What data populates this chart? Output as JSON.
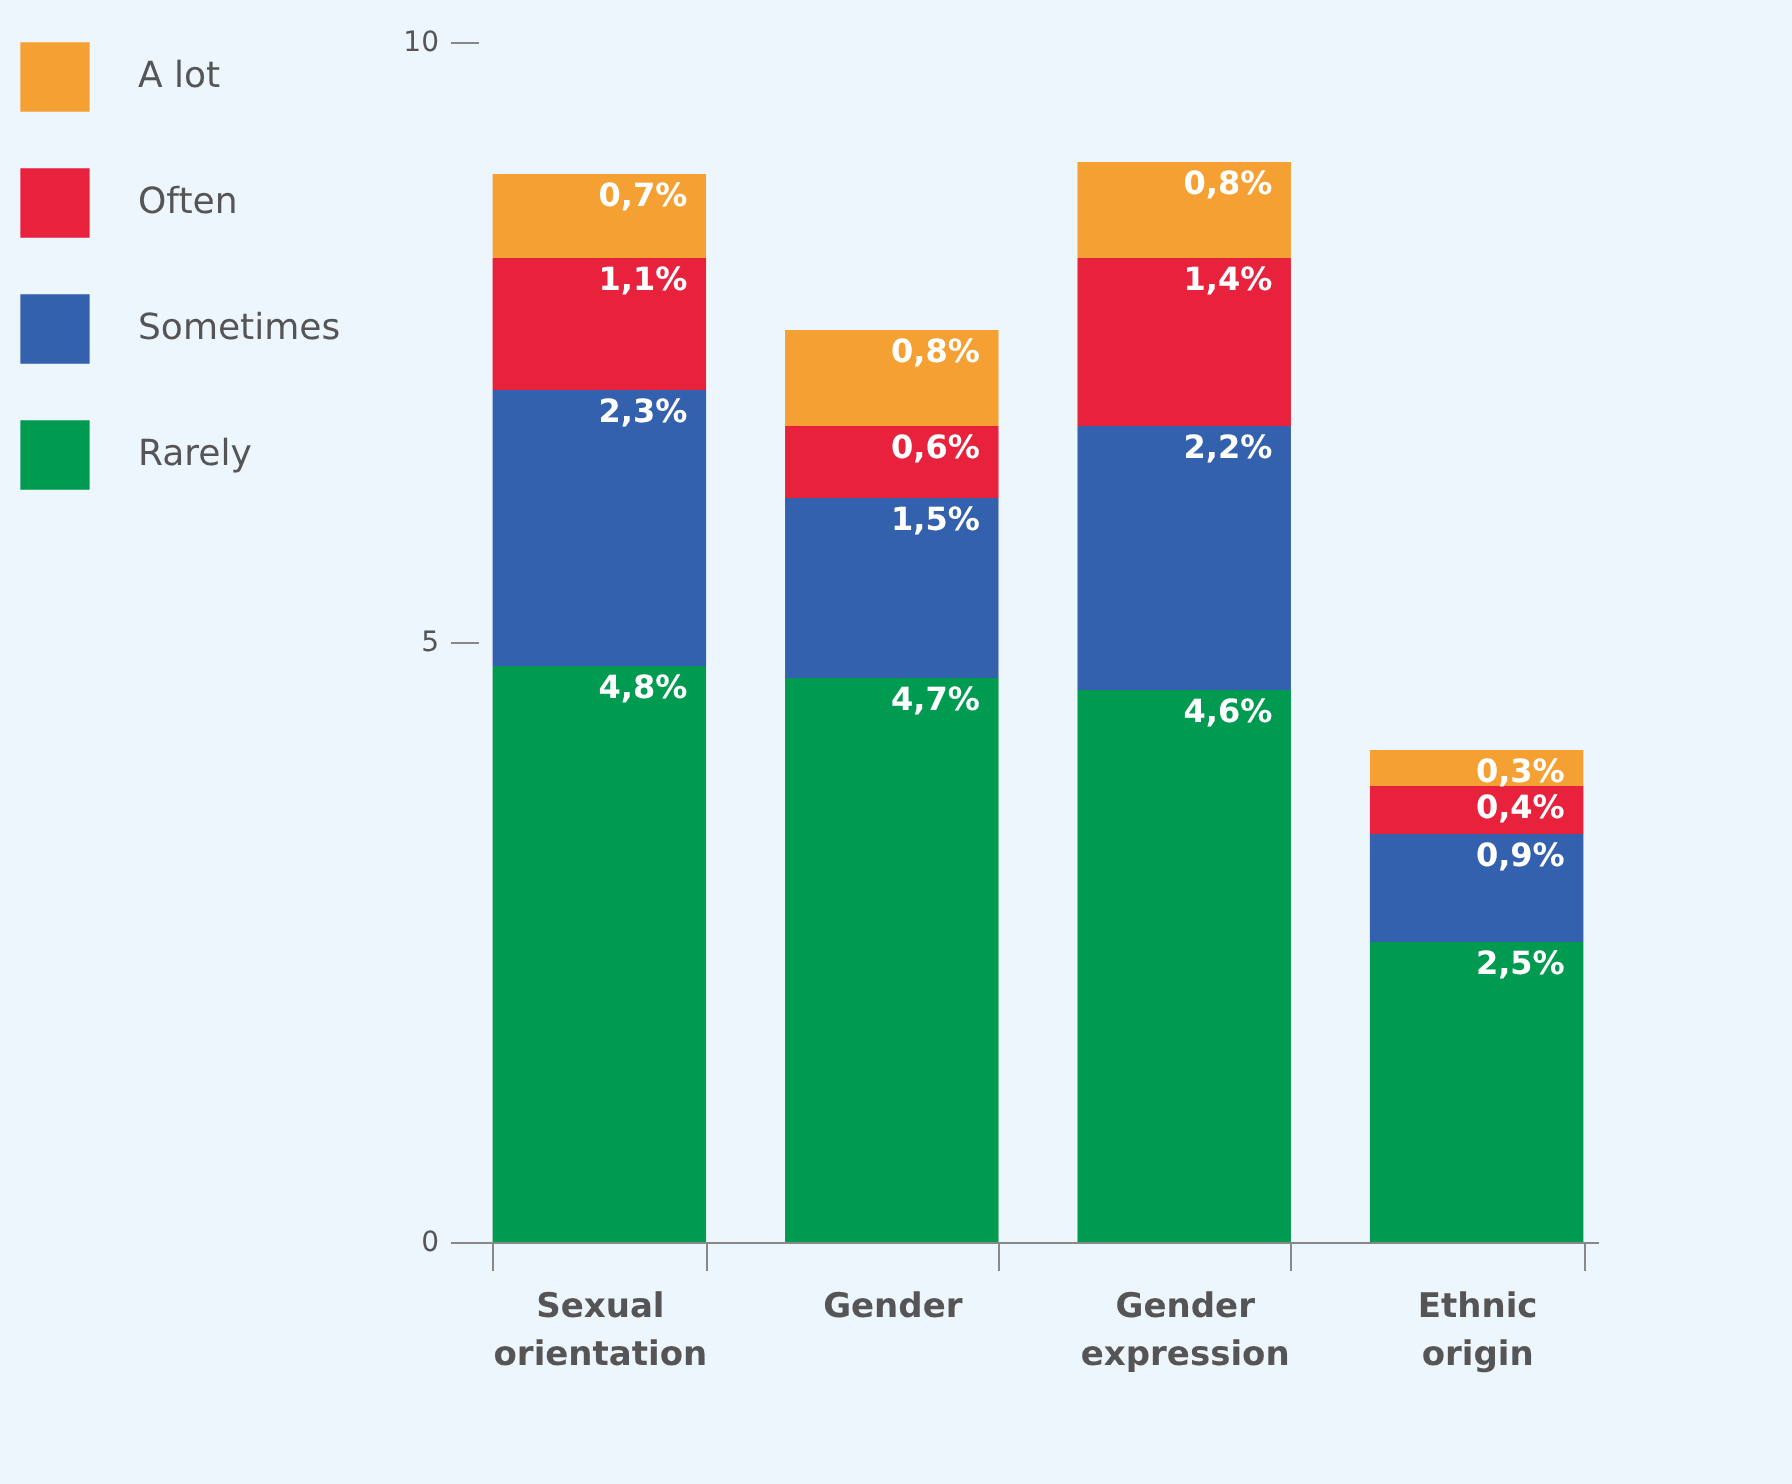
{
  "chart_data": {
    "type": "bar",
    "stacked": true,
    "categories": [
      "Sexual orientation",
      "Gender",
      "Gender expression",
      "Ethnic origin"
    ],
    "series": [
      {
        "name": "Rarely",
        "color": "#009a50",
        "values": [
          4.8,
          4.7,
          4.6,
          2.5
        ],
        "value_labels": [
          "4,8%",
          "4,7%",
          "4,6%",
          "2,5%"
        ]
      },
      {
        "name": "Sometimes",
        "color": "#3461ad",
        "values": [
          2.3,
          1.5,
          2.2,
          0.9
        ],
        "value_labels": [
          "2,3%",
          "1,5%",
          "2,2%",
          "0,9%"
        ]
      },
      {
        "name": "Often",
        "color": "#e8213c",
        "values": [
          1.1,
          0.6,
          1.4,
          0.4
        ],
        "value_labels": [
          "1,1%",
          "0,6%",
          "1,4%",
          "0,4%"
        ]
      },
      {
        "name": "A lot",
        "color": "#f5a033",
        "values": [
          0.7,
          0.8,
          0.8,
          0.3
        ],
        "value_labels": [
          "0,7%",
          "0,8%",
          "0,8%",
          "0,3%"
        ]
      }
    ],
    "ylim": [
      0,
      10
    ],
    "yticks": [
      0,
      5,
      10
    ],
    "grid": false,
    "legend": "left"
  }
}
